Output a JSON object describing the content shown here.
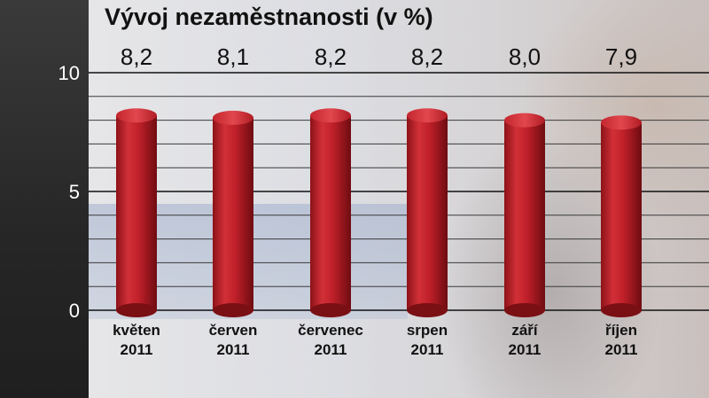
{
  "chart_data": {
    "type": "bar",
    "title": "Vývoj nezaměstnanosti (v %)",
    "categories": [
      [
        "květen",
        "2011"
      ],
      [
        "červen",
        "2011"
      ],
      [
        "červenec",
        "2011"
      ],
      [
        "srpen",
        "2011"
      ],
      [
        "září",
        "2011"
      ],
      [
        "říjen",
        "2011"
      ]
    ],
    "values": [
      8.2,
      8.1,
      8.2,
      8.2,
      8.0,
      7.9
    ],
    "value_labels": [
      "8,2",
      "8,1",
      "8,2",
      "8,2",
      "8,0",
      "7,9"
    ],
    "yticks": [
      0,
      5,
      10
    ],
    "ylim": [
      0,
      10
    ],
    "grid": true,
    "colors": {
      "bar": "#c0202a",
      "bar_dark": "#7a0f14",
      "bar_light": "#e0454c"
    }
  }
}
